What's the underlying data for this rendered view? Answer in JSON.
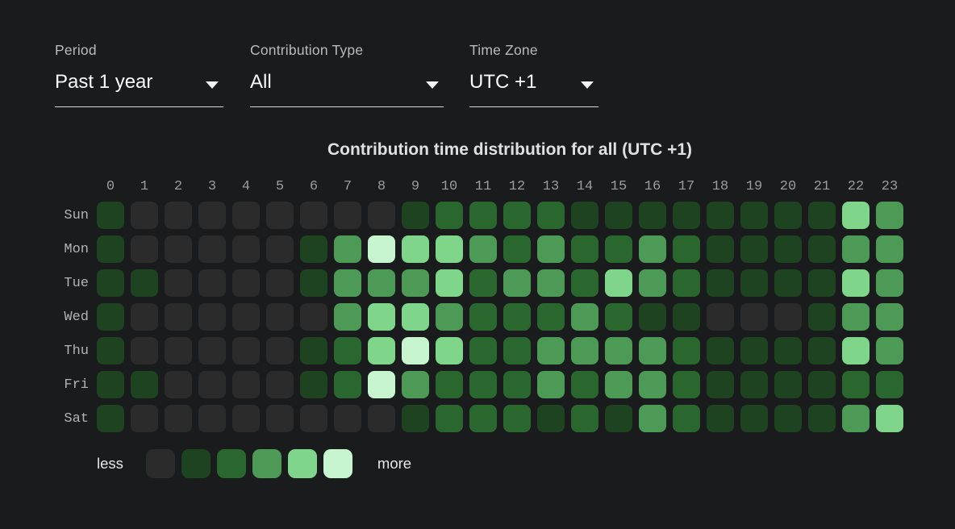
{
  "filters": [
    {
      "id": "period",
      "label": "Period",
      "value": "Past 1 year"
    },
    {
      "id": "contribution-type",
      "label": "Contribution Type",
      "value": "All"
    },
    {
      "id": "time-zone",
      "label": "Time Zone",
      "value": "UTC +1"
    }
  ],
  "chart_data": {
    "type": "heatmap",
    "title": "Contribution time distribution for all (UTC +1)",
    "columns": [
      "0",
      "1",
      "2",
      "3",
      "4",
      "5",
      "6",
      "7",
      "8",
      "9",
      "10",
      "11",
      "12",
      "13",
      "14",
      "15",
      "16",
      "17",
      "18",
      "19",
      "20",
      "21",
      "22",
      "23"
    ],
    "rows": [
      "Sun",
      "Mon",
      "Tue",
      "Wed",
      "Thu",
      "Fri",
      "Sat"
    ],
    "values": [
      [
        1,
        0,
        0,
        0,
        0,
        0,
        0,
        0,
        0,
        1,
        2,
        2,
        2,
        2,
        1,
        1,
        1,
        1,
        1,
        1,
        1,
        1,
        4,
        3
      ],
      [
        1,
        0,
        0,
        0,
        0,
        0,
        1,
        3,
        5,
        4,
        4,
        3,
        2,
        3,
        2,
        2,
        3,
        2,
        1,
        1,
        1,
        1,
        3,
        3
      ],
      [
        1,
        1,
        0,
        0,
        0,
        0,
        1,
        3,
        3,
        3,
        4,
        2,
        3,
        3,
        2,
        4,
        3,
        2,
        1,
        1,
        1,
        1,
        4,
        3
      ],
      [
        1,
        0,
        0,
        0,
        0,
        0,
        0,
        3,
        4,
        4,
        3,
        2,
        2,
        2,
        3,
        2,
        1,
        1,
        0,
        0,
        0,
        1,
        3,
        3
      ],
      [
        1,
        0,
        0,
        0,
        0,
        0,
        1,
        2,
        4,
        5,
        4,
        2,
        2,
        3,
        3,
        3,
        3,
        2,
        1,
        1,
        1,
        1,
        4,
        3
      ],
      [
        1,
        1,
        0,
        0,
        0,
        0,
        1,
        2,
        5,
        3,
        2,
        2,
        2,
        3,
        2,
        3,
        3,
        2,
        1,
        1,
        1,
        1,
        2,
        2
      ],
      [
        1,
        0,
        0,
        0,
        0,
        0,
        0,
        0,
        0,
        1,
        2,
        2,
        2,
        1,
        2,
        1,
        3,
        2,
        1,
        1,
        1,
        1,
        3,
        4
      ]
    ],
    "palette": [
      "#2b2b2b",
      "#1d4321",
      "#2a672e",
      "#4c9a55",
      "#7fd589",
      "#c7f5d0"
    ],
    "legend": {
      "less_label": "less",
      "more_label": "more",
      "levels": [
        0,
        1,
        2,
        3,
        4,
        5
      ],
      "position": "bottom-left"
    },
    "grid": false,
    "background": "#1a1b1d"
  }
}
